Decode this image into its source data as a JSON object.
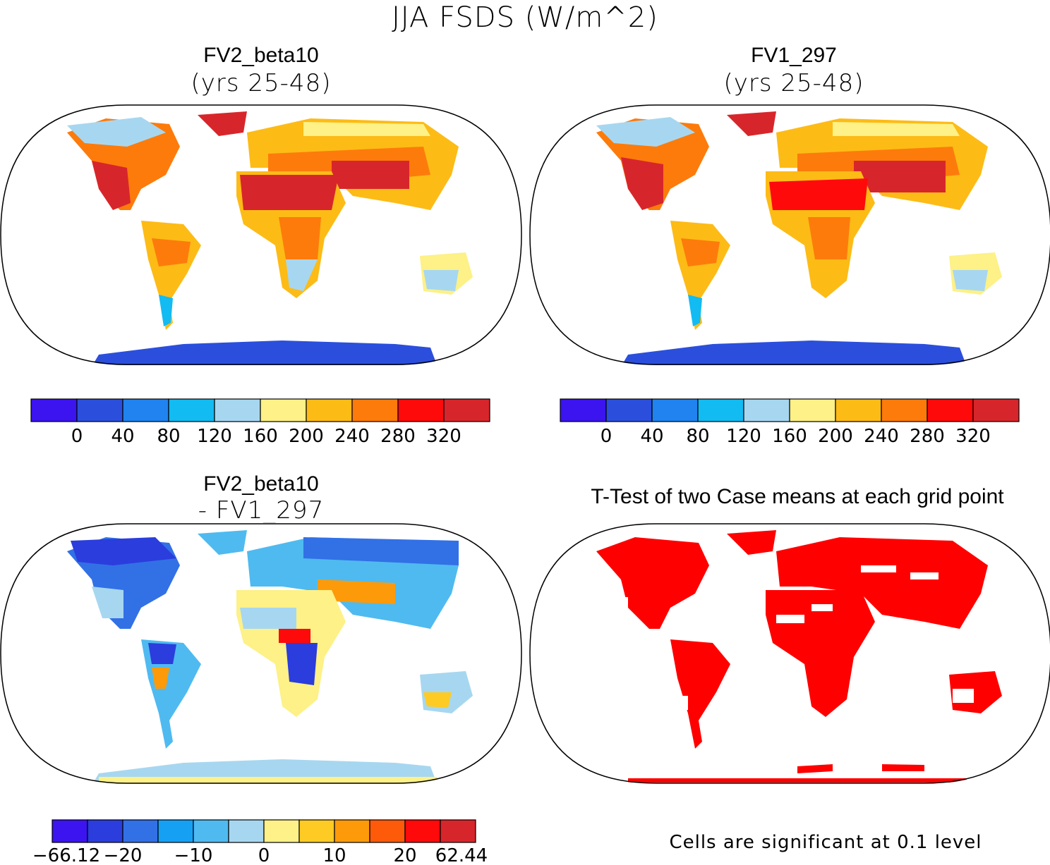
{
  "title": "JJA FSDS (W/m^2)",
  "panels": [
    {
      "id": "tl",
      "title": "FV2_beta10",
      "subtitle": "(yrs 25-48)"
    },
    {
      "id": "tr",
      "title": "FV1_297",
      "subtitle": "(yrs 25-48)"
    },
    {
      "id": "bl",
      "title": "FV2_beta10",
      "subtitle": "- FV1_297"
    },
    {
      "id": "br",
      "title": "T-Test of two Case means at each grid point",
      "subtitle": ""
    }
  ],
  "colorbars": {
    "absolute": {
      "colors": [
        "#3b14f0",
        "#2b4fdc",
        "#2083f0",
        "#12bbf2",
        "#a7d7f0",
        "#fdf187",
        "#fdbb16",
        "#fd7b0b",
        "#ff0a0a",
        "#d7262b"
      ],
      "labels": [
        "0",
        "40",
        "80",
        "120",
        "160",
        "200",
        "240",
        "280",
        "320"
      ]
    },
    "difference": {
      "colors": [
        "#3b14f0",
        "#2b3ddc",
        "#3270e6",
        "#16a0f4",
        "#4fbaf0",
        "#a7d7f0",
        "#fdf187",
        "#fdcb24",
        "#fd9a0a",
        "#fd5a0a",
        "#ff0a0a",
        "#d7262b"
      ],
      "labels": [
        "-66.12",
        "-20",
        "-10",
        "0",
        "10",
        "20",
        "62.44"
      ]
    }
  },
  "significance_color": "#ff0000",
  "footnote": "Cells are significant at 0.1 level"
}
